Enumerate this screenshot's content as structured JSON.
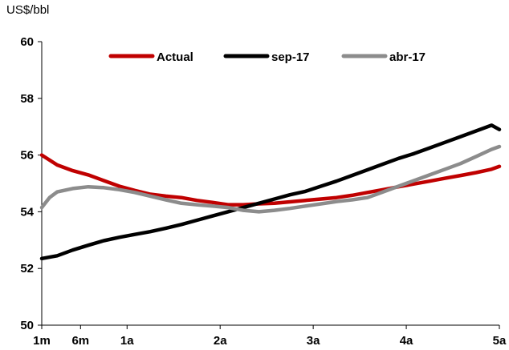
{
  "chart_data": {
    "type": "line",
    "ylabel": "US$/bbl",
    "ylim": [
      50,
      60
    ],
    "yticks": [
      50,
      52,
      54,
      56,
      58,
      60
    ],
    "xlim": [
      1,
      60
    ],
    "xticks": [
      {
        "label": "1m",
        "value": 1
      },
      {
        "label": "6m",
        "value": 6
      },
      {
        "label": "1a",
        "value": 12
      },
      {
        "label": "2a",
        "value": 24
      },
      {
        "label": "3a",
        "value": 36
      },
      {
        "label": "4a",
        "value": 48
      },
      {
        "label": "5a",
        "value": 60
      }
    ],
    "legend_position": "top",
    "grid": false,
    "series": [
      {
        "name": "Actual",
        "color": "#c00000",
        "points": [
          [
            1,
            56.0
          ],
          [
            3,
            55.65
          ],
          [
            5,
            55.45
          ],
          [
            7,
            55.3
          ],
          [
            9,
            55.1
          ],
          [
            11,
            54.9
          ],
          [
            13,
            54.75
          ],
          [
            15,
            54.62
          ],
          [
            17,
            54.55
          ],
          [
            19,
            54.5
          ],
          [
            21,
            54.4
          ],
          [
            23,
            54.33
          ],
          [
            25,
            54.25
          ],
          [
            27,
            54.25
          ],
          [
            29,
            54.28
          ],
          [
            31,
            54.3
          ],
          [
            33,
            54.35
          ],
          [
            35,
            54.4
          ],
          [
            37,
            54.45
          ],
          [
            39,
            54.5
          ],
          [
            41,
            54.58
          ],
          [
            43,
            54.68
          ],
          [
            45,
            54.78
          ],
          [
            47,
            54.88
          ],
          [
            49,
            54.98
          ],
          [
            51,
            55.08
          ],
          [
            53,
            55.18
          ],
          [
            55,
            55.28
          ],
          [
            57,
            55.38
          ],
          [
            59,
            55.5
          ],
          [
            60,
            55.6
          ]
        ]
      },
      {
        "name": "sep-17",
        "color": "#000000",
        "points": [
          [
            1,
            52.35
          ],
          [
            3,
            52.45
          ],
          [
            5,
            52.65
          ],
          [
            7,
            52.82
          ],
          [
            9,
            52.98
          ],
          [
            11,
            53.1
          ],
          [
            13,
            53.2
          ],
          [
            15,
            53.3
          ],
          [
            17,
            53.42
          ],
          [
            19,
            53.55
          ],
          [
            21,
            53.7
          ],
          [
            23,
            53.85
          ],
          [
            25,
            54.0
          ],
          [
            27,
            54.15
          ],
          [
            29,
            54.3
          ],
          [
            31,
            54.45
          ],
          [
            33,
            54.6
          ],
          [
            35,
            54.72
          ],
          [
            37,
            54.9
          ],
          [
            39,
            55.08
          ],
          [
            41,
            55.28
          ],
          [
            43,
            55.48
          ],
          [
            45,
            55.68
          ],
          [
            47,
            55.88
          ],
          [
            49,
            56.05
          ],
          [
            51,
            56.25
          ],
          [
            53,
            56.45
          ],
          [
            55,
            56.65
          ],
          [
            57,
            56.85
          ],
          [
            59,
            57.05
          ],
          [
            60,
            56.9
          ]
        ]
      },
      {
        "name": "abr-17",
        "color": "#8c8c8c",
        "points": [
          [
            1,
            54.15
          ],
          [
            2,
            54.5
          ],
          [
            3,
            54.7
          ],
          [
            5,
            54.82
          ],
          [
            7,
            54.88
          ],
          [
            9,
            54.85
          ],
          [
            11,
            54.78
          ],
          [
            13,
            54.68
          ],
          [
            15,
            54.55
          ],
          [
            17,
            54.42
          ],
          [
            19,
            54.3
          ],
          [
            21,
            54.25
          ],
          [
            23,
            54.2
          ],
          [
            25,
            54.15
          ],
          [
            27,
            54.05
          ],
          [
            29,
            54.0
          ],
          [
            31,
            54.05
          ],
          [
            33,
            54.12
          ],
          [
            35,
            54.2
          ],
          [
            37,
            54.28
          ],
          [
            39,
            54.36
          ],
          [
            41,
            54.42
          ],
          [
            43,
            54.5
          ],
          [
            45,
            54.7
          ],
          [
            47,
            54.9
          ],
          [
            49,
            55.1
          ],
          [
            51,
            55.3
          ],
          [
            53,
            55.5
          ],
          [
            55,
            55.7
          ],
          [
            57,
            55.95
          ],
          [
            59,
            56.2
          ],
          [
            60,
            56.3
          ]
        ]
      }
    ]
  }
}
